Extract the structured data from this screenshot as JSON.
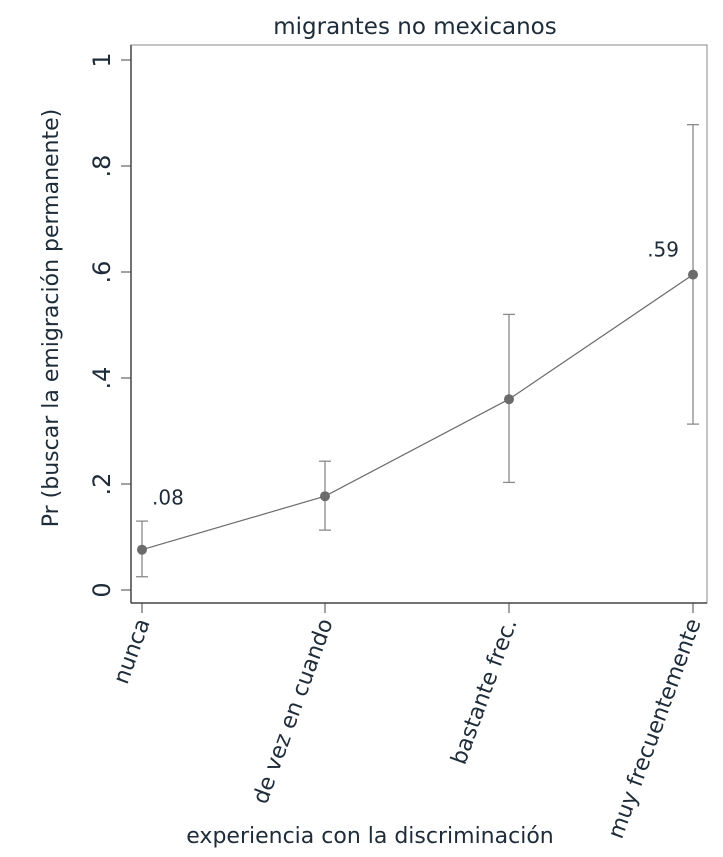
{
  "chart_data": {
    "type": "line",
    "title": "migrantes no mexicanos",
    "xlabel": "experiencia con la discriminación",
    "ylabel": "Pr (buscar la emigración permanente)",
    "categories": [
      "nunca",
      "de vez en cuando",
      "bastante frec.",
      "muy frecuentemente"
    ],
    "series": [
      {
        "name": "Pr",
        "values": [
          0.076,
          0.177,
          0.36,
          0.595
        ],
        "ci_low": [
          0.025,
          0.113,
          0.203,
          0.313
        ],
        "ci_high": [
          0.13,
          0.243,
          0.52,
          0.878
        ]
      }
    ],
    "annotations": [
      {
        "category": "nunca",
        "text": ".08"
      },
      {
        "category": "muy frecuentemente",
        "text": ".59"
      }
    ],
    "yticks": [
      0,
      0.2,
      0.4,
      0.6,
      0.8,
      1
    ],
    "ytick_labels": [
      "0",
      ".2",
      ".4",
      ".6",
      ".8",
      "1"
    ],
    "ylim": [
      0,
      1
    ],
    "grid": false,
    "colors": {
      "marker": "#6b6b6b",
      "line": "#6b6b6b",
      "ci": "#8a8a8a",
      "axis": "#444444"
    }
  }
}
